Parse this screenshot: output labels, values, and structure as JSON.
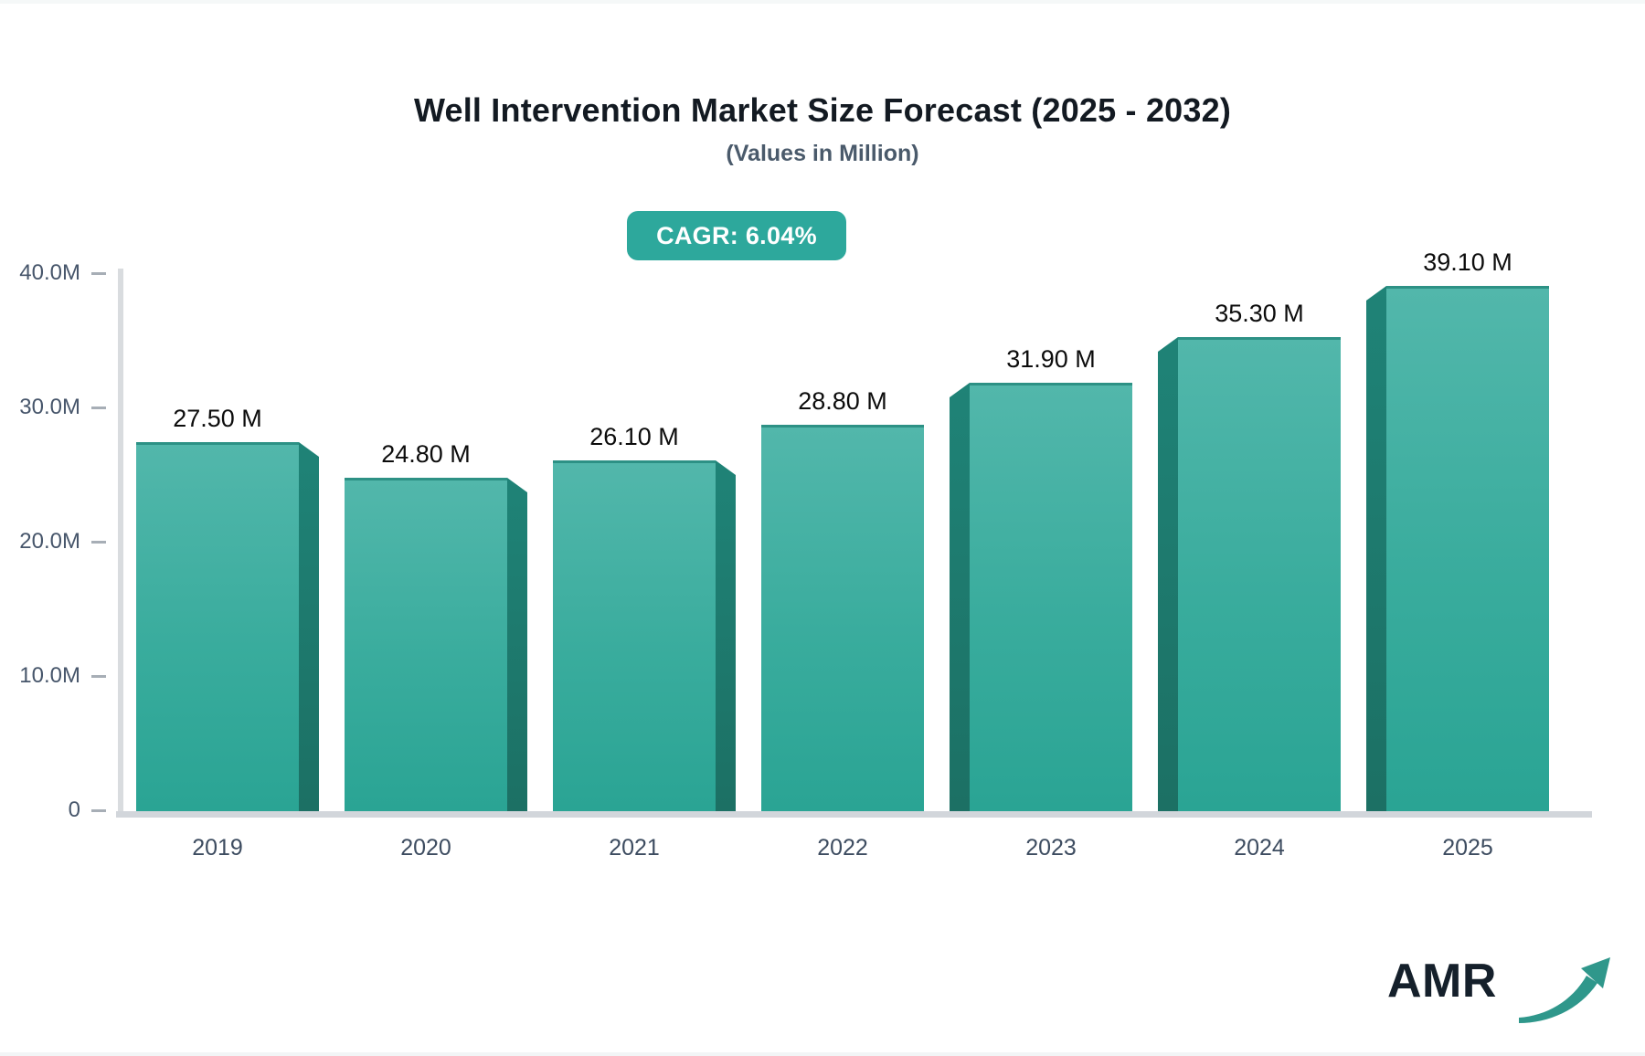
{
  "header": {
    "title": "Well Intervention Market Size Forecast (2025 - 2032)",
    "subtitle": "(Values in Million)",
    "cagr_badge": "CAGR: 6.04%"
  },
  "colors": {
    "badge_bg": "#2da89c",
    "bar_face_top": "#52b7ab",
    "bar_face_bottom": "#2aa494",
    "bar_side": "#1d7a6e",
    "axis_line": "#d2d6db",
    "axis_text": "#47566b",
    "logo_arrow": "#2f978b"
  },
  "chart_data": {
    "type": "bar",
    "title": "Well Intervention Market Size Forecast (2025 - 2032)",
    "subtitle": "(Values in Million)",
    "categories": [
      "2019",
      "2020",
      "2021",
      "2022",
      "2023",
      "2024",
      "2025"
    ],
    "values": [
      27.5,
      24.8,
      26.1,
      28.8,
      31.9,
      35.3,
      39.1
    ],
    "value_labels": [
      "27.50 M",
      "24.80 M",
      "26.10 M",
      "28.80 M",
      "31.90 M",
      "35.30 M",
      "39.10 M"
    ],
    "xlabel": "",
    "ylabel": "",
    "ylim": [
      0,
      40
    ],
    "y_ticks": [
      {
        "label": "0",
        "value": 0
      },
      {
        "label": "10.0M",
        "value": 10
      },
      {
        "label": "20.0M",
        "value": 20
      },
      {
        "label": "30.0M",
        "value": 30
      },
      {
        "label": "40.0M",
        "value": 40
      }
    ],
    "grid": false,
    "legend": false,
    "annotation": "CAGR: 6.04%"
  },
  "logo": {
    "text": "AMR"
  }
}
